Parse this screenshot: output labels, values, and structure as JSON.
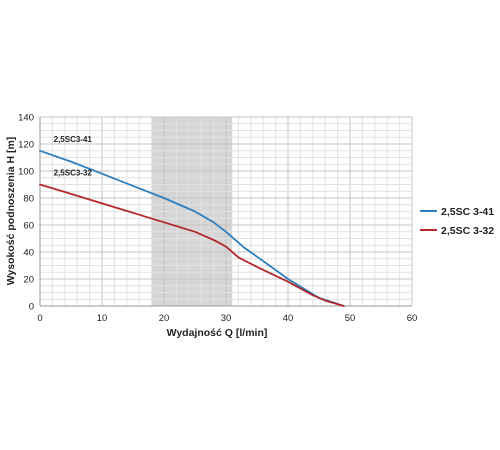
{
  "chart_data": {
    "type": "line",
    "xlabel": "Wydajność Q [l/min]",
    "ylabel": "Wysokość podnoszenia H [m]",
    "xlim": [
      0,
      60
    ],
    "ylim": [
      0,
      140
    ],
    "x_ticks": [
      "0",
      "10",
      "20",
      "30",
      "40",
      "50",
      "60"
    ],
    "y_ticks": [
      "0",
      "20",
      "40",
      "60",
      "80",
      "100",
      "120",
      "140"
    ],
    "grid": true,
    "highlight_x_range": [
      18,
      31
    ],
    "legend_position": "right",
    "series": [
      {
        "name": "2,5SC 3-41",
        "curve_label": "2,5SC3-41",
        "color": "#2e7fbf",
        "x": [
          0,
          5,
          10,
          15,
          20,
          25,
          28,
          30,
          33,
          37,
          40,
          45,
          47,
          49
        ],
        "y": [
          115,
          107,
          98,
          89,
          80,
          70,
          62,
          55,
          43,
          30,
          20,
          6,
          3,
          0
        ]
      },
      {
        "name": "2,5SC 3-32",
        "curve_label": "2,5SC3-32",
        "color": "#b3282d",
        "x": [
          0,
          5,
          10,
          15,
          20,
          25,
          28,
          30,
          32,
          35,
          40,
          44,
          46,
          49
        ],
        "y": [
          90,
          83,
          76,
          69,
          62,
          55,
          49,
          44,
          36,
          29,
          18,
          8,
          4,
          0
        ]
      }
    ]
  }
}
